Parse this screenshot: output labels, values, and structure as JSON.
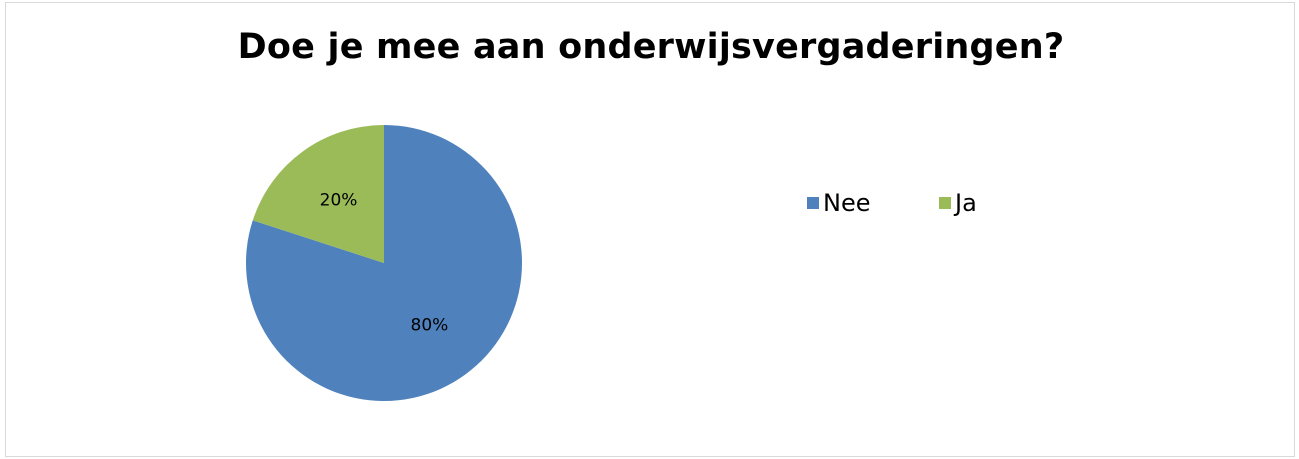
{
  "chart_data": {
    "type": "pie",
    "title": "Doe je mee aan onderwijsvergaderingen?",
    "categories": [
      "Nee",
      "Ja"
    ],
    "values": [
      80,
      20
    ],
    "data_labels": [
      "80%",
      "20%"
    ],
    "colors": [
      "#4f81bd",
      "#9bbb59"
    ],
    "legend_position": "right",
    "start_angle": "12 o'clock, clockwise"
  }
}
